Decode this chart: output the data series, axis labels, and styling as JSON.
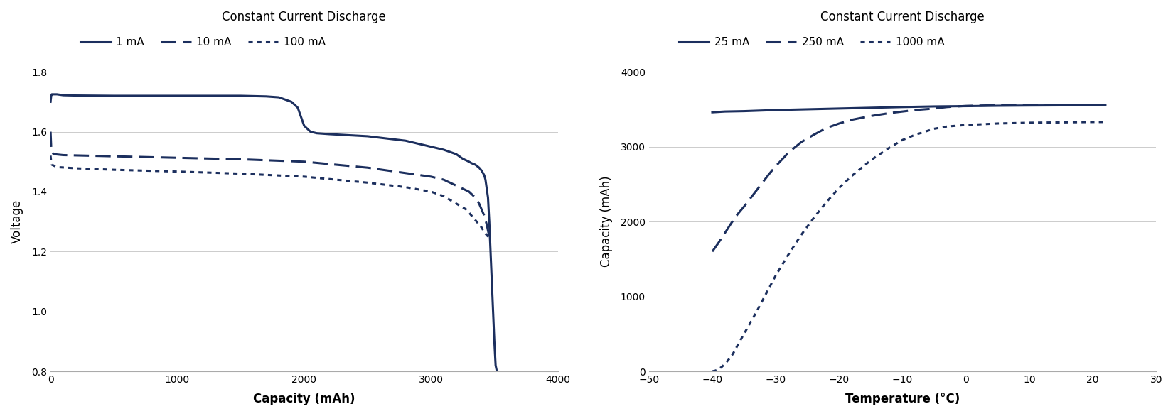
{
  "color": "#1c2f5e",
  "title1": "Constant Current Discharge",
  "title2": "Constant Current Discharge",
  "xlabel1": "Capacity (mAh)",
  "ylabel1": "Voltage",
  "xlabel2": "Temperature (°C)",
  "ylabel2": "Capacity (mAh)",
  "legend1": [
    "1 mA",
    "10 mA",
    "100 mA"
  ],
  "legend2": [
    "25 mA",
    "250 mA",
    "1000 mA"
  ],
  "xlim1": [
    0,
    4000
  ],
  "ylim1": [
    0.8,
    1.8
  ],
  "xlim2": [
    -50,
    30
  ],
  "ylim2": [
    0,
    4000
  ],
  "xticks1": [
    0,
    1000,
    2000,
    3000,
    4000
  ],
  "yticks1": [
    0.8,
    1.0,
    1.2,
    1.4,
    1.6,
    1.8
  ],
  "xticks2": [
    -50,
    -40,
    -30,
    -20,
    -10,
    0,
    10,
    20,
    30
  ],
  "yticks2": [
    0,
    1000,
    2000,
    3000,
    4000
  ],
  "x1_1mA": [
    0,
    5,
    10,
    20,
    50,
    100,
    200,
    500,
    800,
    1000,
    1200,
    1500,
    1700,
    1800,
    1900,
    1950,
    2000,
    2050,
    2100,
    2200,
    2500,
    2800,
    3000,
    3100,
    3200,
    3250,
    3300,
    3320,
    3350,
    3380,
    3400,
    3420,
    3430,
    3440,
    3450,
    3460,
    3470,
    3480,
    3490,
    3500,
    3510,
    3520
  ],
  "y1_1mA": [
    1.7,
    1.72,
    1.725,
    1.725,
    1.725,
    1.722,
    1.721,
    1.72,
    1.72,
    1.72,
    1.72,
    1.72,
    1.718,
    1.715,
    1.7,
    1.68,
    1.62,
    1.6,
    1.595,
    1.592,
    1.585,
    1.57,
    1.55,
    1.54,
    1.525,
    1.51,
    1.5,
    1.495,
    1.49,
    1.48,
    1.47,
    1.455,
    1.44,
    1.41,
    1.38,
    1.3,
    1.2,
    1.1,
    1.0,
    0.9,
    0.82,
    0.8
  ],
  "x1_10mA": [
    0,
    5,
    10,
    30,
    100,
    300,
    500,
    800,
    1000,
    1500,
    2000,
    2500,
    2800,
    3000,
    3100,
    3200,
    3300,
    3350,
    3380,
    3400,
    3420,
    3440,
    3450,
    3460,
    3470
  ],
  "y1_10mA": [
    1.6,
    1.55,
    1.53,
    1.525,
    1.522,
    1.52,
    1.518,
    1.515,
    1.513,
    1.508,
    1.5,
    1.48,
    1.462,
    1.45,
    1.44,
    1.42,
    1.4,
    1.38,
    1.36,
    1.34,
    1.32,
    1.29,
    1.27,
    1.25,
    1.24
  ],
  "x1_100mA": [
    0,
    5,
    10,
    50,
    200,
    500,
    1000,
    1500,
    2000,
    2500,
    2800,
    3000,
    3100,
    3200,
    3280,
    3320,
    3360,
    3400,
    3420,
    3450,
    3460
  ],
  "y1_100mA": [
    1.52,
    1.5,
    1.49,
    1.482,
    1.478,
    1.473,
    1.467,
    1.46,
    1.45,
    1.43,
    1.415,
    1.4,
    1.385,
    1.36,
    1.34,
    1.32,
    1.3,
    1.28,
    1.265,
    1.25,
    1.24
  ],
  "x2_25mA": [
    -40,
    -38,
    -35,
    -30,
    -25,
    -20,
    -15,
    -10,
    -5,
    0,
    5,
    10,
    15,
    20,
    22
  ],
  "y2_25mA": [
    3460,
    3470,
    3475,
    3490,
    3500,
    3510,
    3520,
    3530,
    3538,
    3542,
    3547,
    3550,
    3552,
    3555,
    3555
  ],
  "x2_250mA": [
    -40,
    -39,
    -38,
    -37,
    -36,
    -35,
    -34,
    -33,
    -32,
    -31,
    -30,
    -28,
    -26,
    -24,
    -22,
    -20,
    -18,
    -15,
    -12,
    -10,
    -8,
    -5,
    -3,
    0,
    5,
    10,
    15,
    20,
    22
  ],
  "y2_250mA": [
    1600,
    1720,
    1850,
    1980,
    2100,
    2200,
    2310,
    2420,
    2530,
    2640,
    2740,
    2920,
    3060,
    3160,
    3250,
    3310,
    3360,
    3410,
    3450,
    3470,
    3490,
    3510,
    3530,
    3545,
    3555,
    3560,
    3560,
    3560,
    3560
  ],
  "x2_1000mA": [
    -40,
    -39.5,
    -39,
    -38.5,
    -38,
    -37.5,
    -37,
    -36.5,
    -36,
    -35,
    -34,
    -33,
    -32,
    -31,
    -30,
    -28,
    -26,
    -24,
    -22,
    -20,
    -18,
    -15,
    -12,
    -10,
    -8,
    -5,
    -3,
    0,
    5,
    10,
    15,
    20,
    22
  ],
  "y2_1000mA": [
    0,
    10,
    30,
    60,
    100,
    150,
    200,
    270,
    350,
    500,
    650,
    800,
    960,
    1120,
    1280,
    1560,
    1820,
    2050,
    2260,
    2450,
    2610,
    2820,
    2990,
    3090,
    3160,
    3240,
    3270,
    3290,
    3310,
    3320,
    3325,
    3330,
    3330
  ]
}
